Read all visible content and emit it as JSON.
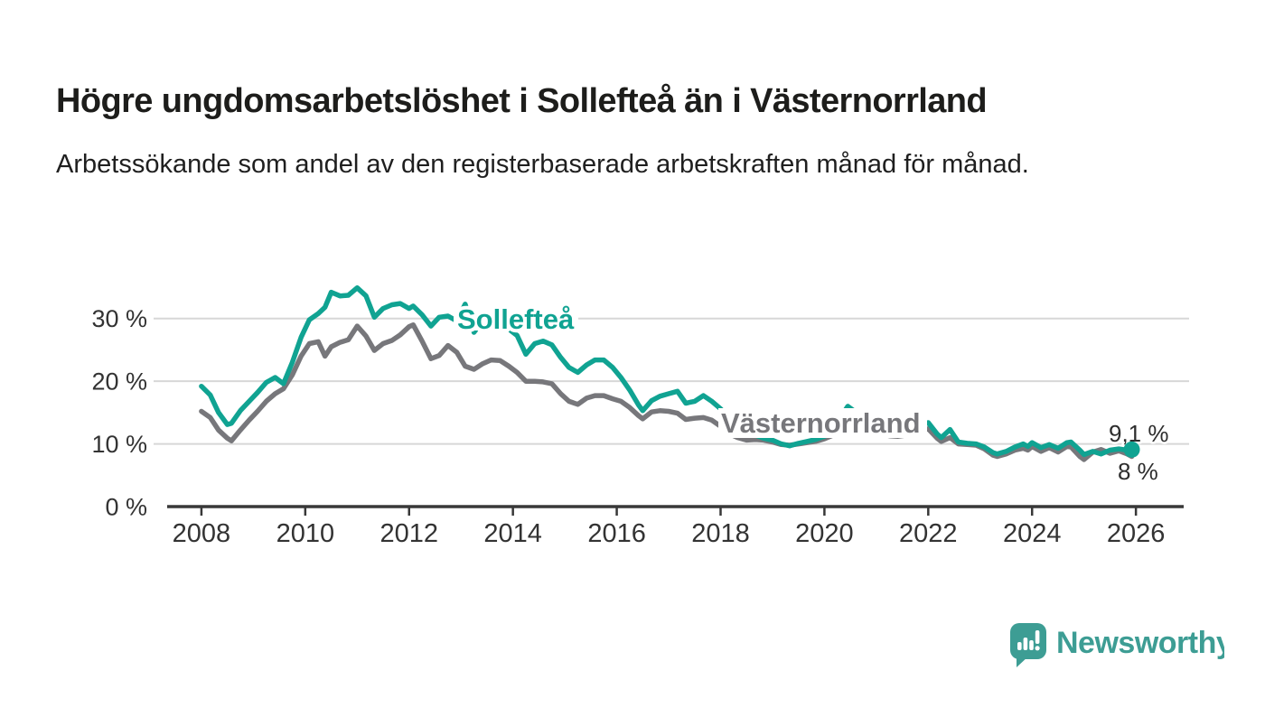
{
  "title": "Högre ungdomsarbetslöshet i Sollefteå än i Västernorrland",
  "subtitle": "Arbetssökande som andel av den registerbaserade arbetskraften månad för månad.",
  "footer": {
    "brand": "Newsworthy",
    "logo_icon": "newsworthy-speech-bubble-bar-chart-icon"
  },
  "colors": {
    "solleftea": "#10a392",
    "vasternorrland": "#77777b",
    "axis": "#383838",
    "grid": "#d7d7d7",
    "text": "#333333",
    "brand_teal": "#3d9d94"
  },
  "chart_data": {
    "type": "line",
    "title": "Högre ungdomsarbetslöshet i Sollefteå än i Västernorrland",
    "subtitle": "Arbetssökande som andel av den registerbaserade arbetskraften månad för månad.",
    "xlabel": "",
    "ylabel": "",
    "grid": "horizontal",
    "legend_position": "inline-labels",
    "xlim": [
      2007.34,
      2026.92
    ],
    "ylim": [
      0,
      36.3
    ],
    "xticks": [
      2008,
      2010,
      2012,
      2014,
      2016,
      2018,
      2020,
      2022,
      2024,
      2026
    ],
    "ytick_values": [
      0,
      10,
      20,
      30
    ],
    "ytick_labels": [
      "0 %",
      "10 %",
      "20 %",
      "30 %"
    ],
    "x": [
      2008.0,
      2008.17,
      2008.33,
      2008.5,
      2008.58,
      2008.75,
      2008.92,
      2009.08,
      2009.25,
      2009.42,
      2009.58,
      2009.75,
      2009.92,
      2010.08,
      2010.25,
      2010.38,
      2010.5,
      2010.67,
      2010.83,
      2011.0,
      2011.17,
      2011.33,
      2011.5,
      2011.67,
      2011.83,
      2012.0,
      2012.08,
      2012.25,
      2012.42,
      2012.58,
      2012.75,
      2012.92,
      2013.08,
      2013.25,
      2013.42,
      2013.58,
      2013.75,
      2013.92,
      2014.08,
      2014.25,
      2014.42,
      2014.58,
      2014.75,
      2014.92,
      2015.08,
      2015.25,
      2015.42,
      2015.58,
      2015.75,
      2015.92,
      2016.08,
      2016.25,
      2016.42,
      2016.5,
      2016.67,
      2016.83,
      2017.0,
      2017.17,
      2017.33,
      2017.5,
      2017.67,
      2017.83,
      2018.0,
      2018.17,
      2018.33,
      2018.5,
      2018.67,
      2018.83,
      2019.0,
      2019.17,
      2019.33,
      2019.5,
      2019.67,
      2019.83,
      2020.0,
      2020.17,
      2020.33,
      2020.45,
      2020.58,
      2020.75,
      2020.92,
      2021.08,
      2021.25,
      2021.42,
      2021.58,
      2021.75,
      2021.92,
      2022.0,
      2022.17,
      2022.25,
      2022.42,
      2022.58,
      2022.75,
      2022.92,
      2023.08,
      2023.25,
      2023.33,
      2023.5,
      2023.67,
      2023.83,
      2023.92,
      2024.0,
      2024.17,
      2024.33,
      2024.5,
      2024.67,
      2024.75,
      2024.92,
      2025.0,
      2025.17,
      2025.33,
      2025.5,
      2025.67,
      2025.83,
      2025.92
    ],
    "series": [
      {
        "name": "Sollefteå",
        "color": "#10a392",
        "end_label": "9,1 %",
        "end_dot": true,
        "values": [
          19.2,
          17.8,
          15.0,
          13.1,
          13.3,
          15.3,
          16.8,
          18.2,
          19.8,
          20.6,
          19.6,
          23.0,
          27.0,
          29.8,
          30.8,
          31.8,
          34.2,
          33.6,
          33.7,
          34.9,
          33.6,
          30.2,
          31.6,
          32.2,
          32.4,
          31.6,
          32.0,
          30.6,
          28.8,
          30.2,
          30.4,
          29.6,
          32.3,
          27.8,
          29.6,
          30.0,
          29.4,
          28.3,
          27.3,
          24.3,
          26.0,
          26.4,
          25.8,
          23.8,
          22.2,
          21.4,
          22.6,
          23.4,
          23.4,
          22.2,
          20.6,
          18.6,
          16.2,
          15.3,
          16.9,
          17.6,
          18.0,
          18.4,
          16.5,
          16.8,
          17.7,
          16.8,
          15.6,
          14.0,
          12.8,
          12.0,
          11.4,
          10.9,
          10.6,
          10.0,
          9.7,
          10.1,
          10.4,
          10.7,
          11.2,
          12.0,
          14.5,
          16.0,
          15.2,
          13.6,
          12.6,
          12.0,
          11.6,
          11.5,
          11.8,
          12.3,
          13.2,
          13.4,
          11.6,
          11.0,
          12.3,
          10.3,
          10.1,
          10.0,
          9.5,
          8.6,
          8.4,
          8.8,
          9.5,
          10.0,
          9.6,
          10.2,
          9.4,
          9.9,
          9.3,
          10.2,
          10.3,
          9.0,
          8.3,
          8.8,
          8.4,
          9.0,
          9.2,
          9.0,
          9.1
        ]
      },
      {
        "name": "Västernorrland",
        "color": "#77777b",
        "end_label": "8 %",
        "end_dot": false,
        "values": [
          15.2,
          14.2,
          12.2,
          10.9,
          10.5,
          12.2,
          13.8,
          15.2,
          16.8,
          18.0,
          18.8,
          21.0,
          24.0,
          26.0,
          26.3,
          24.0,
          25.5,
          26.2,
          26.6,
          28.8,
          27.2,
          24.9,
          26.0,
          26.5,
          27.4,
          28.7,
          29.0,
          26.4,
          23.6,
          24.1,
          25.7,
          24.6,
          22.4,
          21.9,
          22.8,
          23.4,
          23.3,
          22.4,
          21.4,
          20.0,
          20.0,
          19.9,
          19.6,
          18.0,
          16.8,
          16.3,
          17.3,
          17.7,
          17.7,
          17.2,
          16.8,
          15.8,
          14.5,
          14.0,
          15.1,
          15.3,
          15.2,
          14.9,
          13.9,
          14.1,
          14.2,
          13.8,
          12.8,
          11.6,
          11.0,
          10.6,
          10.7,
          10.6,
          10.3,
          9.9,
          9.8,
          10.0,
          10.2,
          10.4,
          10.8,
          11.4,
          12.4,
          13.0,
          12.8,
          12.3,
          11.9,
          11.6,
          11.3,
          11.2,
          11.4,
          11.8,
          12.3,
          12.4,
          10.9,
          10.4,
          11.0,
          10.0,
          9.9,
          9.8,
          9.2,
          8.2,
          8.0,
          8.4,
          9.0,
          9.3,
          9.0,
          9.6,
          8.8,
          9.4,
          8.7,
          9.6,
          9.5,
          8.0,
          7.5,
          8.7,
          9.1,
          8.5,
          8.9,
          8.4,
          8.0
        ]
      }
    ]
  }
}
